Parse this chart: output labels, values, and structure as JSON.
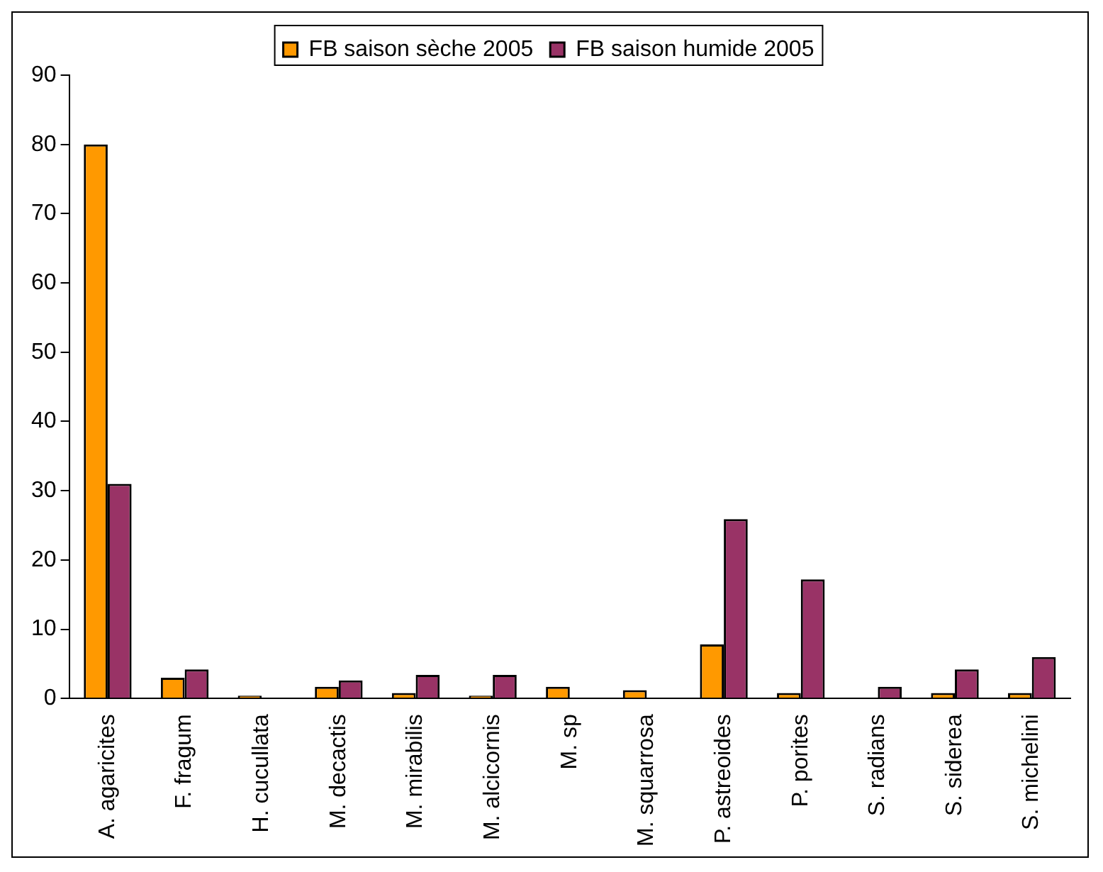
{
  "chart_data": {
    "type": "bar",
    "categories": [
      "A. agaricites",
      "F. fragum",
      "H. cucullata",
      "M. decactis",
      "M. mirabilis",
      "M. alcicornis",
      "M. sp",
      "M. squarrosa",
      "P. astreoides",
      "P. porites",
      "S. radians",
      "S. siderea",
      "S. michelini"
    ],
    "series": [
      {
        "name": "FB saison sèche 2005",
        "color": "#ff9900",
        "values": [
          80,
          3,
          0.4,
          1.7,
          0.8,
          0.4,
          1.7,
          1.2,
          7.8,
          0.8,
          null,
          0.8,
          0.8
        ]
      },
      {
        "name": "FB saison humide 2005",
        "color": "#993366",
        "values": [
          31,
          4.2,
          null,
          2.6,
          3.4,
          3.4,
          null,
          null,
          25.9,
          17.2,
          1.7,
          4.2,
          6.0
        ]
      }
    ],
    "ylim": [
      0,
      90
    ],
    "yticks": [
      0,
      10,
      20,
      30,
      40,
      50,
      60,
      70,
      80,
      90
    ],
    "grid": false,
    "legend": "top"
  }
}
